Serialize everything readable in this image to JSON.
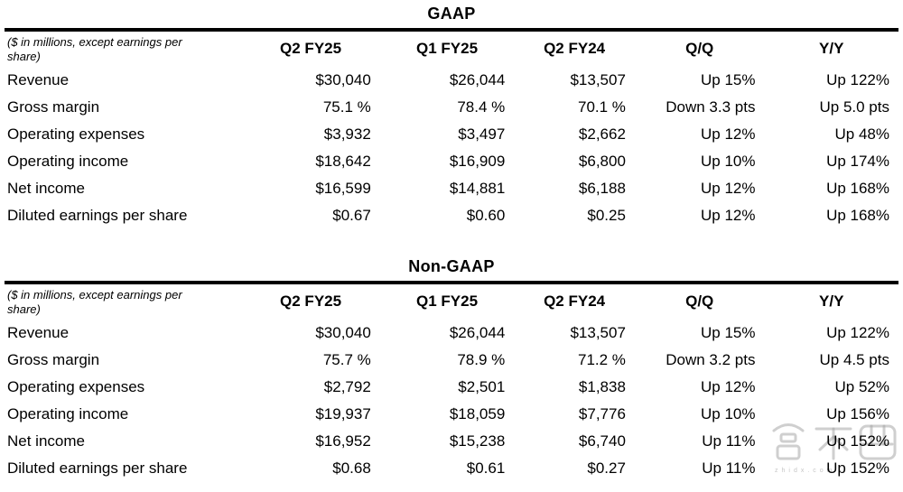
{
  "page": {
    "background": "#ffffff",
    "text_color": "#000000",
    "rule_color": "#000000"
  },
  "watermark": {
    "text": "智东西",
    "subtext": "zhidx.com",
    "color": "#bdbdbd"
  },
  "chart_data": [
    {
      "type": "table",
      "title": "GAAP",
      "note": "($ in millions, except earnings per share)",
      "columns": [
        "Q2 FY25",
        "Q1 FY25",
        "Q2 FY24",
        "Q/Q",
        "Y/Y"
      ],
      "rows": [
        {
          "label": "Revenue",
          "values": [
            "$30,040",
            "$26,044",
            "$13,507",
            "Up 15%",
            "Up 122%"
          ]
        },
        {
          "label": "Gross margin",
          "values": [
            "75.1 %",
            "78.4 %",
            "70.1 %",
            "Down 3.3 pts",
            "Up 5.0 pts"
          ]
        },
        {
          "label": "Operating expenses",
          "values": [
            "$3,932",
            "$3,497",
            "$2,662",
            "Up 12%",
            "Up 48%"
          ]
        },
        {
          "label": "Operating income",
          "values": [
            "$18,642",
            "$16,909",
            "$6,800",
            "Up 10%",
            "Up 174%"
          ]
        },
        {
          "label": "Net income",
          "values": [
            "$16,599",
            "$14,881",
            "$6,188",
            "Up 12%",
            "Up 168%"
          ]
        },
        {
          "label": "Diluted earnings per share",
          "values": [
            "$0.67",
            "$0.60",
            "$0.25",
            "Up 12%",
            "Up 168%"
          ]
        }
      ]
    },
    {
      "type": "table",
      "title": "Non-GAAP",
      "note": "($ in millions, except earnings per share)",
      "columns": [
        "Q2 FY25",
        "Q1 FY25",
        "Q2 FY24",
        "Q/Q",
        "Y/Y"
      ],
      "rows": [
        {
          "label": "Revenue",
          "values": [
            "$30,040",
            "$26,044",
            "$13,507",
            "Up 15%",
            "Up 122%"
          ]
        },
        {
          "label": "Gross margin",
          "values": [
            "75.7 %",
            "78.9 %",
            "71.2 %",
            "Down 3.2 pts",
            "Up 4.5 pts"
          ]
        },
        {
          "label": "Operating expenses",
          "values": [
            "$2,792",
            "$2,501",
            "$1,838",
            "Up 12%",
            "Up 52%"
          ]
        },
        {
          "label": "Operating income",
          "values": [
            "$19,937",
            "$18,059",
            "$7,776",
            "Up 10%",
            "Up 156%"
          ]
        },
        {
          "label": "Net income",
          "values": [
            "$16,952",
            "$15,238",
            "$6,740",
            "Up 11%",
            "Up 152%"
          ]
        },
        {
          "label": "Diluted earnings per share",
          "values": [
            "$0.68",
            "$0.61",
            "$0.27",
            "Up 11%",
            "Up 152%"
          ]
        }
      ]
    }
  ]
}
